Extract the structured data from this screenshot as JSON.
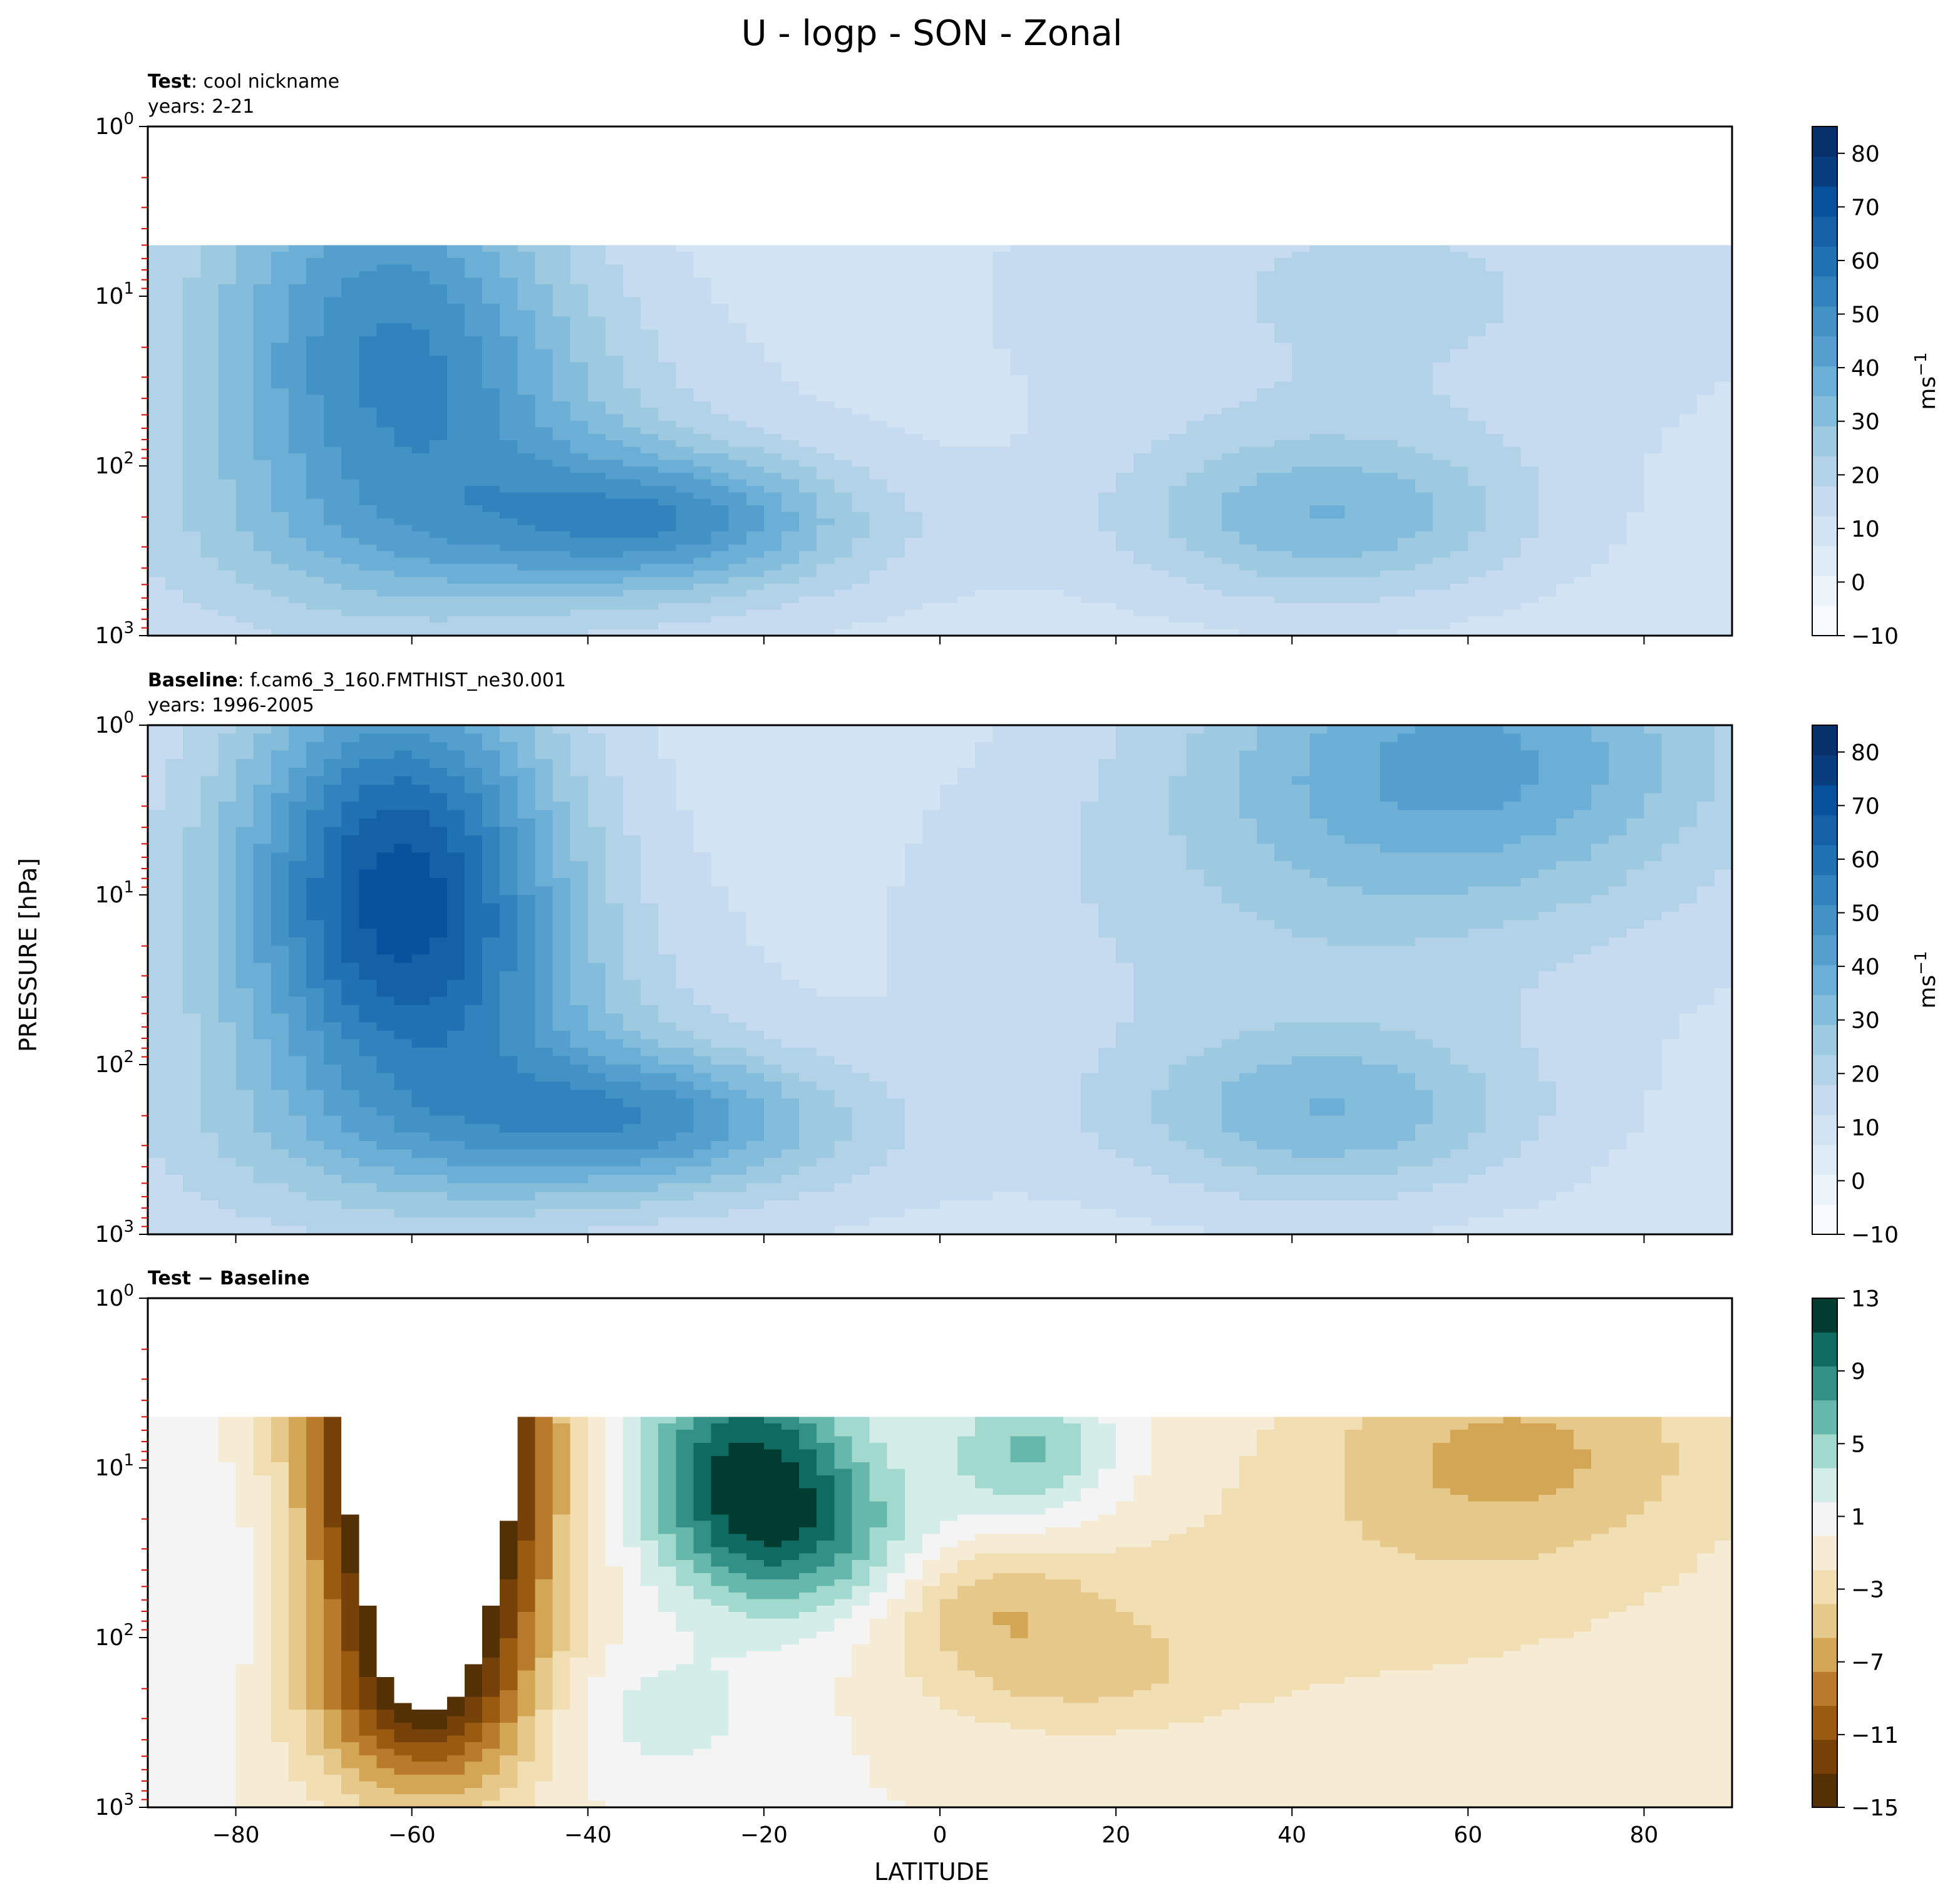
{
  "title": "U - logp - SON - Zonal",
  "ylabel": "PRESSURE [hPa]",
  "xlabel": "LATITUDE",
  "colors": {
    "blues": [
      "#f7fbff",
      "#ebf3fb",
      "#deebf7",
      "#d2e3f3",
      "#c6dbef",
      "#b2d2e8",
      "#9ecae1",
      "#84bcdb",
      "#6baed6",
      "#549fcd",
      "#4292c6",
      "#3282be",
      "#2171b5",
      "#1461a8",
      "#08519c",
      "#083e80",
      "#08306b"
    ],
    "diff": [
      "#543005",
      "#774209",
      "#9a5a10",
      "#b87b2b",
      "#d3a656",
      "#e6c98a",
      "#f1dfb3",
      "#f6ecd6",
      "#f3f4f3",
      "#d5ede9",
      "#a2d9cf",
      "#66b8ad",
      "#339087",
      "#0f6b61",
      "#003c30"
    ]
  },
  "chart_data": [
    {
      "type": "contourf",
      "id": "test",
      "label_bold": "Test",
      "label_rest": ": cool nickname",
      "years": "years: 2-21",
      "colorbar_label": "ms",
      "colorbar_exp": "−1",
      "colorbar_levels": [
        -10,
        85
      ],
      "colorbar_ticks": [
        "80",
        "70",
        "60",
        "50",
        "40",
        "30",
        "20",
        "10",
        "0",
        "−10"
      ],
      "colorbar_tick_values": [
        80,
        70,
        60,
        50,
        40,
        30,
        20,
        10,
        0,
        -10
      ],
      "xlim": [
        -90,
        90
      ],
      "ylim_hpa": [
        1,
        1000
      ],
      "yticks": [
        "0",
        "1",
        "2",
        "3"
      ],
      "data_top_hpa": 5,
      "fill_level_index": 2,
      "blobs": [
        {
          "lat": -62,
          "p": 15,
          "sx": 14,
          "sy": 0.9,
          "v": 36
        },
        {
          "lat": -50,
          "p": 80,
          "sx": 18,
          "sy": 0.6,
          "v": 14
        },
        {
          "lat": -30,
          "p": 200,
          "sx": 14,
          "sy": 0.28,
          "v": 26
        },
        {
          "lat": -45,
          "p": 300,
          "sx": 30,
          "sy": 0.35,
          "v": 12
        },
        {
          "lat": 44,
          "p": 200,
          "sx": 16,
          "sy": 0.35,
          "v": 24
        },
        {
          "lat": 50,
          "p": 10,
          "sx": 30,
          "sy": 0.7,
          "v": 10
        },
        {
          "lat": -82,
          "p": 30,
          "sx": 12,
          "sy": 1.2,
          "v": 6
        }
      ],
      "base_value": 9
    },
    {
      "type": "contourf",
      "id": "baseline",
      "label_bold": "Baseline",
      "label_rest": ": f.cam6_3_160.FMTHIST_ne30.001",
      "years": "years: 1996-2005",
      "colorbar_label": "ms",
      "colorbar_exp": "−1",
      "colorbar_levels": [
        -10,
        85
      ],
      "colorbar_ticks": [
        "80",
        "70",
        "60",
        "50",
        "40",
        "30",
        "20",
        "10",
        "0",
        "−10"
      ],
      "colorbar_tick_values": [
        80,
        70,
        60,
        50,
        40,
        30,
        20,
        10,
        0,
        -10
      ],
      "xlim": [
        -90,
        90
      ],
      "ylim_hpa": [
        1,
        1000
      ],
      "yticks": [
        "0",
        "1",
        "2",
        "3"
      ],
      "data_top_hpa": 1,
      "fill_level_index": 2,
      "blobs": [
        {
          "lat": -61,
          "p": 8,
          "sx": 13,
          "sy": 0.9,
          "v": 58
        },
        {
          "lat": -50,
          "p": 80,
          "sx": 16,
          "sy": 0.6,
          "v": 14
        },
        {
          "lat": -32,
          "p": 200,
          "sx": 14,
          "sy": 0.28,
          "v": 24
        },
        {
          "lat": -45,
          "p": 300,
          "sx": 30,
          "sy": 0.35,
          "v": 12
        },
        {
          "lat": 44,
          "p": 200,
          "sx": 16,
          "sy": 0.35,
          "v": 22
        },
        {
          "lat": 60,
          "p": 1.5,
          "sx": 22,
          "sy": 0.6,
          "v": 30
        },
        {
          "lat": 40,
          "p": 15,
          "sx": 30,
          "sy": 0.8,
          "v": 10
        },
        {
          "lat": -82,
          "p": 30,
          "sx": 12,
          "sy": 1.2,
          "v": 6
        }
      ],
      "base_value": 9
    },
    {
      "type": "contourf",
      "id": "diff",
      "label_bold": "Test − Baseline",
      "label_rest": "",
      "years": "",
      "colorbar_label": "",
      "colorbar_exp": "",
      "colorbar_levels": [
        -15,
        13
      ],
      "colorbar_ticks": [
        "13",
        "9",
        "5",
        "1",
        "−3",
        "−7",
        "−11",
        "−15"
      ],
      "colorbar_tick_values": [
        13,
        9,
        5,
        1,
        -3,
        -7,
        -11,
        -15
      ],
      "xlim": [
        -90,
        90
      ],
      "ylim_hpa": [
        1,
        1000
      ],
      "yticks": [
        "0",
        "1",
        "2",
        "3"
      ],
      "data_top_hpa": 5,
      "blobs": [
        {
          "lat": -58,
          "p": 10,
          "sx": 9,
          "sy": 1.0,
          "v": -26
        },
        {
          "lat": -58,
          "p": 250,
          "sx": 10,
          "sy": 0.35,
          "v": -6
        },
        {
          "lat": -22,
          "p": 10,
          "sx": 9,
          "sy": 0.45,
          "v": 11
        },
        {
          "lat": -14,
          "p": 30,
          "sx": 10,
          "sy": 0.35,
          "v": 6
        },
        {
          "lat": 10,
          "p": 8,
          "sx": 7,
          "sy": 0.3,
          "v": 6
        },
        {
          "lat": -35,
          "p": 280,
          "sx": 12,
          "sy": 0.3,
          "v": 3
        },
        {
          "lat": 65,
          "p": 8,
          "sx": 18,
          "sy": 0.45,
          "v": -6
        },
        {
          "lat": 40,
          "p": 70,
          "sx": 35,
          "sy": 0.5,
          "v": -2.5
        },
        {
          "lat": 5,
          "p": 60,
          "sx": 9,
          "sy": 0.25,
          "v": -4
        },
        {
          "lat": 15,
          "p": 170,
          "sx": 12,
          "sy": 0.25,
          "v": -3
        },
        {
          "lat": -82,
          "p": 50,
          "sx": 7,
          "sy": 0.6,
          "v": 2
        }
      ],
      "base_value": 0
    }
  ],
  "xticks": [
    "−80",
    "−60",
    "−40",
    "−20",
    "0",
    "20",
    "40",
    "60",
    "80"
  ],
  "xtick_values": [
    -80,
    -60,
    -40,
    -20,
    0,
    20,
    40,
    60,
    80
  ]
}
